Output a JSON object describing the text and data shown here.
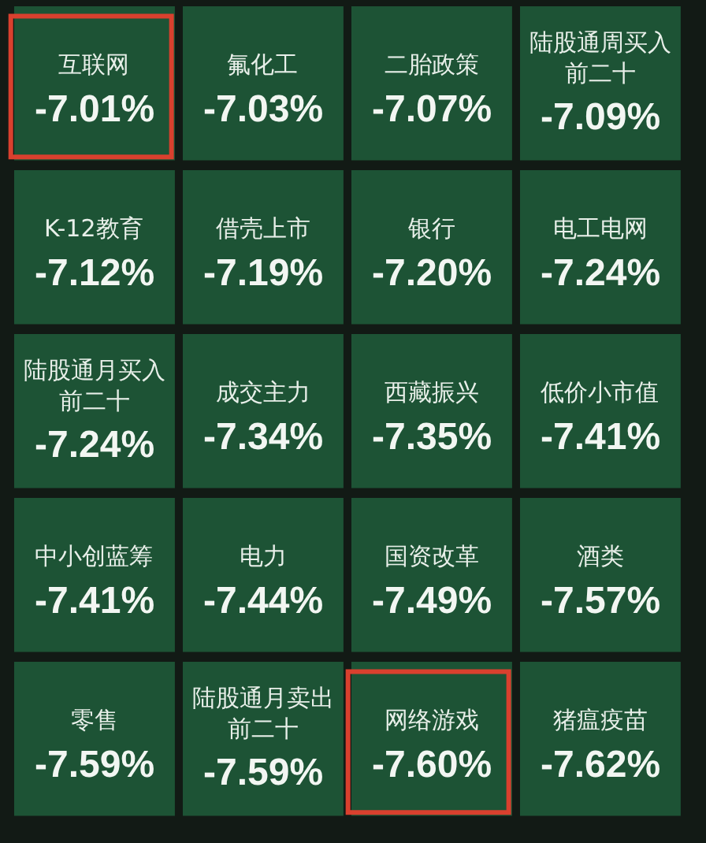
{
  "chart_data": {
    "type": "other",
    "categories": [
      "互联网",
      "氟化工",
      "二胎政策",
      "陆股通周买入前二十",
      "K-12教育",
      "借壳上市",
      "银行",
      "电工电网",
      "陆股通月买入前二十",
      "成交主力",
      "西藏振兴",
      "低价小市值",
      "中小创蓝筹",
      "电力",
      "国资改革",
      "酒类",
      "零售",
      "陆股通月卖出前二十",
      "网络游戏",
      "猪瘟疫苗"
    ],
    "values": [
      -7.01,
      -7.03,
      -7.07,
      -7.09,
      -7.12,
      -7.19,
      -7.2,
      -7.24,
      -7.24,
      -7.34,
      -7.35,
      -7.41,
      -7.41,
      -7.44,
      -7.49,
      -7.57,
      -7.59,
      -7.59,
      -7.6,
      -7.62
    ],
    "value_labels": [
      "-7.01%",
      "-7.03%",
      "-7.07%",
      "-7.09%",
      "-7.12%",
      "-7.19%",
      "-7.20%",
      "-7.24%",
      "-7.24%",
      "-7.34%",
      "-7.35%",
      "-7.41%",
      "-7.41%",
      "-7.44%",
      "-7.49%",
      "-7.57%",
      "-7.59%",
      "-7.59%",
      "-7.60%",
      "-7.62%"
    ],
    "color": "#1d5335"
  }
}
